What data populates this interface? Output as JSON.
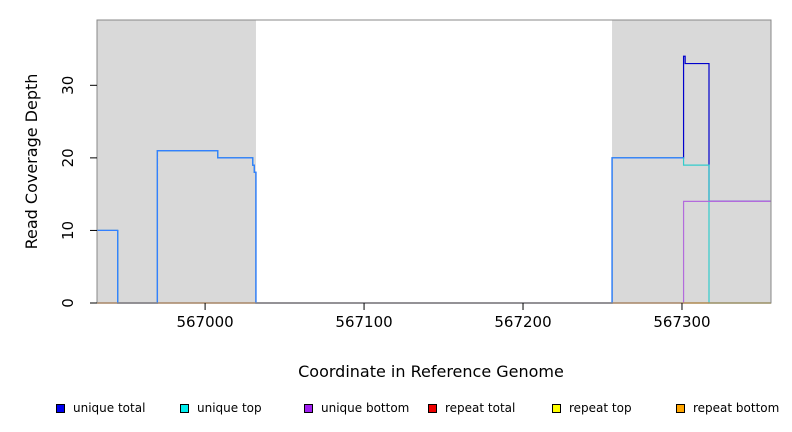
{
  "chart_data": {
    "type": "line",
    "title": "",
    "xlabel": "Coordinate in Reference Genome",
    "ylabel": "Read Coverage Depth",
    "xlim": [
      566932,
      567356
    ],
    "ylim": [
      0,
      39
    ],
    "x_ticks": [
      567000,
      567100,
      567200,
      567300
    ],
    "x_tick_labels": [
      "567000",
      "567100",
      "567200",
      "567300"
    ],
    "y_ticks": [
      0,
      10,
      20,
      30
    ],
    "y_tick_labels": [
      "0",
      "10",
      "20",
      "30"
    ],
    "shaded_regions": [
      {
        "x0": 566932,
        "x1": 567032,
        "color": "#d9d9d9"
      },
      {
        "x0": 567256,
        "x1": 567356,
        "color": "#d9d9d9"
      }
    ],
    "series": [
      {
        "name": "unique total",
        "color": "#0000cc",
        "x": [
          566932,
          566945,
          566945,
          566970,
          566970,
          567008,
          567008,
          567030,
          567030,
          567031,
          567031,
          567032,
          567032,
          567256,
          567256,
          567301,
          567301,
          567302,
          567302,
          567317,
          567317,
          567356
        ],
        "y": [
          10,
          10,
          0,
          0,
          21,
          21,
          20,
          20,
          19,
          19,
          18,
          18,
          0,
          0,
          20,
          20,
          34,
          34,
          33,
          33,
          14,
          14
        ]
      },
      {
        "name": "unique top",
        "color": "#33cccc",
        "x": [
          566932,
          566945,
          566945,
          566970,
          566970,
          567008,
          567008,
          567030,
          567030,
          567031,
          567031,
          567032,
          567032,
          567256,
          567256,
          567301,
          567301,
          567317,
          567317,
          567356
        ],
        "y": [
          10,
          10,
          0,
          0,
          21,
          21,
          20,
          20,
          19,
          19,
          18,
          18,
          0,
          0,
          20,
          20,
          19,
          19,
          0,
          0
        ]
      },
      {
        "name": "unique bottom",
        "color": "#b36bdc",
        "x": [
          566932,
          567301,
          567301,
          567356
        ],
        "y": [
          0,
          0,
          14,
          14
        ]
      },
      {
        "name": "repeat total",
        "color": "#e31a1c",
        "x": [
          566932,
          567356
        ],
        "y": [
          0,
          0
        ]
      },
      {
        "name": "repeat top",
        "color": "#ffff00",
        "x": [
          566932,
          567356
        ],
        "y": [
          0,
          0
        ]
      },
      {
        "name": "repeat bottom",
        "color": "#ff9900",
        "x": [
          567301,
          567317
        ],
        "y": [
          0,
          0
        ]
      },
      {
        "name": "",
        "color": "#3380ff",
        "x": [
          566932,
          566945,
          566945,
          566970,
          566970,
          567008,
          567008,
          567030,
          567030,
          567031,
          567031,
          567032,
          567032,
          567256,
          567256,
          567301
        ],
        "y": [
          10,
          10,
          0,
          0,
          21,
          21,
          20,
          20,
          19,
          19,
          18,
          18,
          0,
          0,
          20,
          20
        ]
      }
    ],
    "legend": {
      "position": "bottom",
      "entries": [
        {
          "label": "unique total",
          "color": "#0000ee"
        },
        {
          "label": "unique top",
          "color": "#00eeee"
        },
        {
          "label": "unique bottom",
          "color": "#a020f0"
        },
        {
          "label": "repeat total",
          "color": "#ee0000"
        },
        {
          "label": "repeat top",
          "color": "#ffff00"
        },
        {
          "label": "repeat bottom",
          "color": "#ffa500"
        }
      ]
    }
  }
}
